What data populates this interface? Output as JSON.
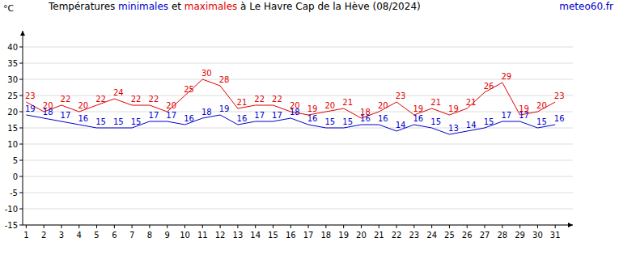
{
  "chart_data": {
    "type": "line",
    "title": "Températures minimales et maximales à Le Havre Cap de la Hève (08/2024)",
    "annotation": "meteo60.fr",
    "y_label": "°C",
    "x": [
      1,
      2,
      3,
      4,
      5,
      6,
      7,
      8,
      9,
      10,
      11,
      12,
      13,
      14,
      15,
      16,
      17,
      18,
      19,
      20,
      21,
      22,
      23,
      24,
      25,
      26,
      27,
      28,
      29,
      30,
      31
    ],
    "series": [
      {
        "name": "minimales",
        "color": "#0000cc",
        "values": [
          19,
          18,
          17,
          16,
          15,
          15,
          15,
          17,
          17,
          16,
          18,
          19,
          16,
          17,
          17,
          18,
          16,
          15,
          15,
          16,
          16,
          14,
          16,
          15,
          13,
          14,
          15,
          17,
          17,
          15,
          16
        ]
      },
      {
        "name": "maximales",
        "color": "#e00000",
        "values": [
          23,
          20,
          22,
          20,
          22,
          24,
          22,
          22,
          20,
          25,
          30,
          28,
          21,
          22,
          22,
          20,
          19,
          20,
          21,
          18,
          20,
          23,
          19,
          21,
          19,
          21,
          26,
          29,
          19,
          20,
          23
        ]
      }
    ],
    "xlim": [
      0.8,
      32
    ],
    "xticks": [
      1,
      2,
      3,
      4,
      5,
      6,
      7,
      8,
      9,
      10,
      11,
      12,
      13,
      14,
      15,
      16,
      17,
      18,
      19,
      20,
      21,
      22,
      23,
      24,
      25,
      26,
      27,
      28,
      29,
      30,
      31
    ],
    "ylim": [
      -15,
      45
    ],
    "yticks": [
      -15,
      -10,
      -5,
      0,
      5,
      10,
      15,
      20,
      25,
      30,
      35,
      40
    ],
    "grid": true,
    "data_labels": true
  }
}
